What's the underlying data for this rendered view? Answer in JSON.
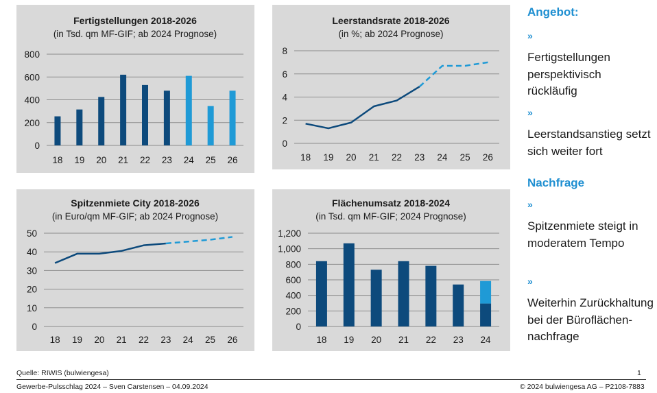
{
  "colors": {
    "navy": "#0d4a7c",
    "light_blue": "#1f9ad6",
    "panel_bg": "#d9d9d9",
    "accent": "#1f8fd1"
  },
  "chart_data": [
    {
      "id": "fertig",
      "type": "bar",
      "title": "Fertigstellungen 2018-2026",
      "subtitle": "(in Tsd. qm MF-GIF; ab 2024 Prognose)",
      "categories": [
        "18",
        "19",
        "20",
        "21",
        "22",
        "23",
        "24",
        "25",
        "26"
      ],
      "values": [
        255,
        315,
        425,
        620,
        530,
        480,
        610,
        345,
        480
      ],
      "prognosis_from_index": 6,
      "ylim": [
        0,
        800
      ],
      "yticks": [
        0,
        200,
        400,
        600,
        800
      ],
      "ytick_labels": [
        "0",
        "200",
        "400",
        "600",
        "800"
      ],
      "grid": true
    },
    {
      "id": "leerstand",
      "type": "line",
      "title": "Leerstandsrate 2018-2026",
      "subtitle": "(in %; ab 2024 Prognose)",
      "categories": [
        "18",
        "19",
        "20",
        "21",
        "22",
        "23",
        "24",
        "25",
        "26"
      ],
      "values": [
        1.7,
        1.3,
        1.8,
        3.2,
        3.7,
        4.9,
        6.7,
        6.7,
        7.0
      ],
      "dashed_from_x": 23,
      "ylim": [
        0,
        8
      ],
      "yticks": [
        0,
        2,
        4,
        6,
        8
      ],
      "ytick_labels": [
        "0",
        "2",
        "4",
        "6",
        "8"
      ],
      "grid": true
    },
    {
      "id": "spitzen",
      "type": "line",
      "title": "Spitzenmiete City 2018-2026",
      "subtitle": "(in Euro/qm MF-GIF; ab 2024 Prognose)",
      "categories": [
        "18",
        "19",
        "20",
        "21",
        "22",
        "23",
        "24",
        "25",
        "26"
      ],
      "values": [
        34,
        39,
        39,
        40.5,
        43.5,
        44.5,
        45.5,
        46.5,
        48
      ],
      "dashed_from_x": 23,
      "ylim": [
        0,
        50
      ],
      "yticks": [
        0,
        10,
        20,
        30,
        40,
        50
      ],
      "ytick_labels": [
        "0",
        "10",
        "20",
        "30",
        "40",
        "50"
      ],
      "grid": true
    },
    {
      "id": "umsatz",
      "type": "bar",
      "title": "Flächenumsatz 2018-2024",
      "subtitle": "(in Tsd. qm MF-GIF; 2024 Prognose)",
      "categories": [
        "18",
        "19",
        "20",
        "21",
        "22",
        "23",
        "24"
      ],
      "values": [
        840,
        1070,
        730,
        840,
        780,
        540,
        295
      ],
      "prognosis_stack": [
        0,
        0,
        0,
        0,
        0,
        0,
        290
      ],
      "ylim": [
        0,
        1200
      ],
      "yticks": [
        0,
        200,
        400,
        600,
        800,
        1000,
        1200
      ],
      "ytick_labels": [
        "0",
        "200",
        "400",
        "600",
        "800",
        "1,000",
        "1,200"
      ],
      "grid": true
    }
  ],
  "sidebar": {
    "angebot_heading": "Angebot:",
    "bullet": "»",
    "item1": "Fertigstellungen perspektivisch rückläufig",
    "item2": "Leerstandsanstieg setzt sich weiter fort",
    "nachfrage_heading": "Nachfrage",
    "item3": "Spitzenmiete steigt in moderatem Tempo",
    "item4": "Weiterhin Zurückhaltung bei der Büroflächen-nachfrage"
  },
  "footer": {
    "source": "Quelle: RIWIS (bulwiengesa)",
    "page_number": "1",
    "left": "Gewerbe-Pulsschlag 2024 – Sven Carstensen – 04.09.2024",
    "right": "© 2024 bulwiengesa AG – P2108-7883"
  }
}
